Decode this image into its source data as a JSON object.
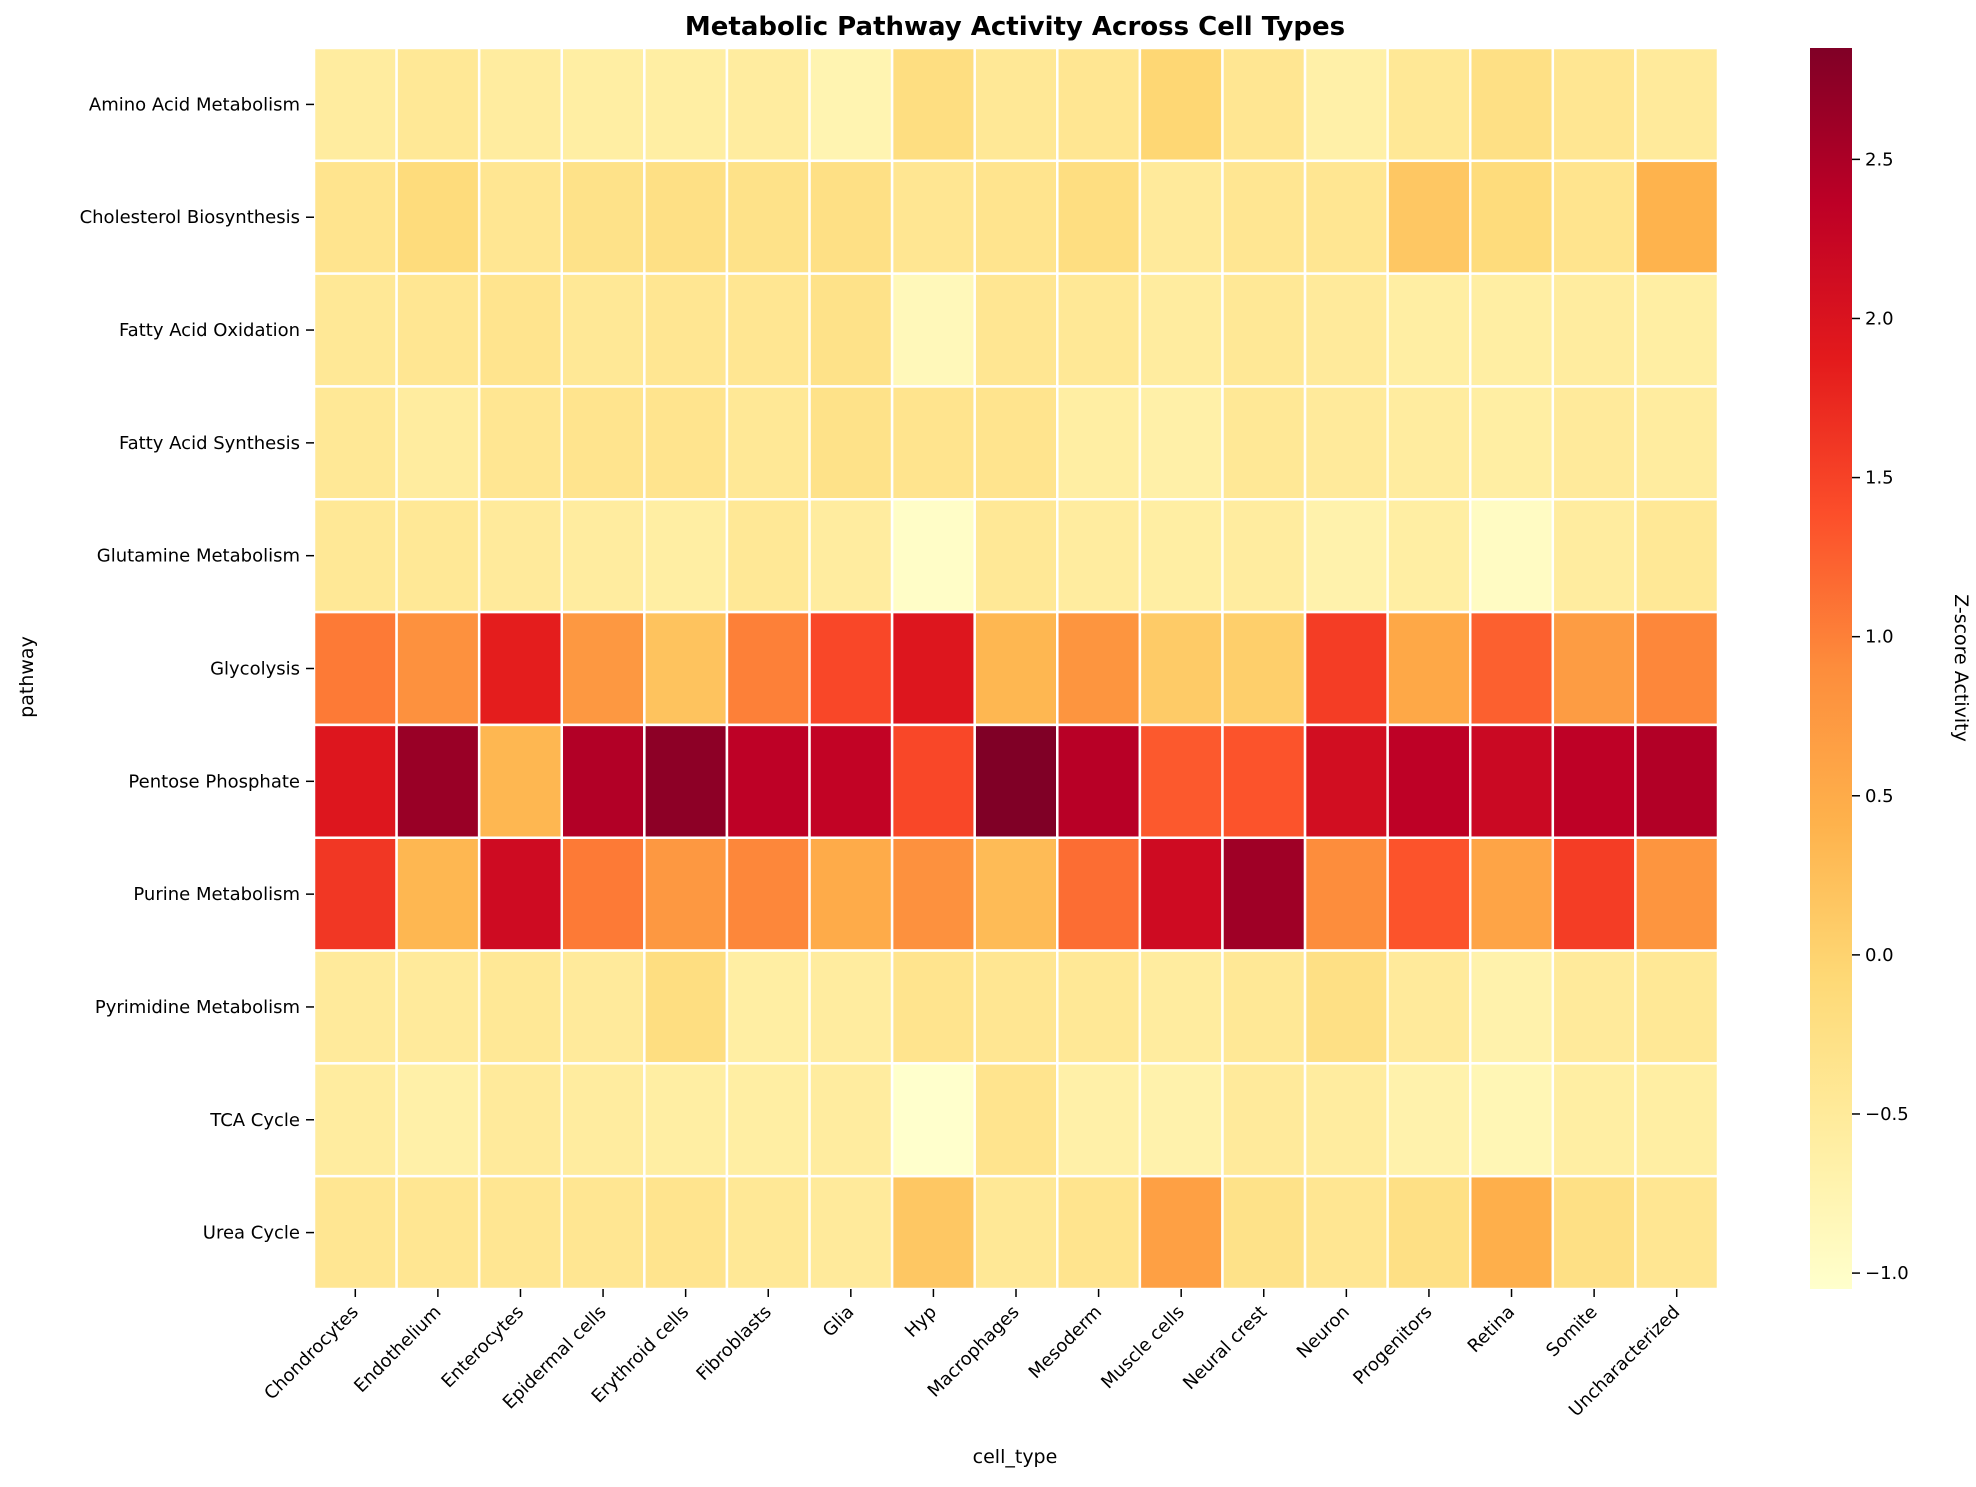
{
  "chart_data": {
    "type": "heatmap",
    "title": "Metabolic Pathway Activity Across Cell Types",
    "xlabel": "cell_type",
    "ylabel": "pathway",
    "colorbar_label": "Z-score Activity",
    "colormap": "YlOrRd",
    "color_range": [
      -1.05,
      2.85
    ],
    "colorbar_ticks": [
      {
        "value": 2.5,
        "label": "2.5"
      },
      {
        "value": 2.0,
        "label": "2.0"
      },
      {
        "value": 1.5,
        "label": "1.5"
      },
      {
        "value": 1.0,
        "label": "1.0"
      },
      {
        "value": 0.5,
        "label": "0.5"
      },
      {
        "value": 0.0,
        "label": "0.0"
      },
      {
        "value": -0.5,
        "label": "−0.5"
      },
      {
        "value": -1.0,
        "label": "−1.0"
      }
    ],
    "x_categories": [
      "Chondrocytes",
      "Endothelium",
      "Enterocytes",
      "Epidermal cells",
      "Erythroid cells",
      "Fibroblasts",
      "Glia",
      "Hyp",
      "Macrophages",
      "Mesoderm",
      "Muscle cells",
      "Neural crest",
      "Neuron",
      "Progenitors",
      "Retina",
      "Somite",
      "Uncharacterized"
    ],
    "y_categories": [
      "Amino Acid Metabolism",
      "Cholesterol Biosynthesis",
      "Fatty Acid Oxidation",
      "Fatty Acid Synthesis",
      "Glutamine Metabolism",
      "Glycolysis",
      "Pentose Phosphate",
      "Purine Metabolism",
      "Pyrimidine Metabolism",
      "TCA Cycle",
      "Urea Cycle"
    ],
    "values": [
      [
        -0.55,
        -0.45,
        -0.55,
        -0.6,
        -0.6,
        -0.55,
        -0.75,
        -0.2,
        -0.45,
        -0.4,
        -0.05,
        -0.4,
        -0.65,
        -0.45,
        -0.25,
        -0.4,
        -0.5
      ],
      [
        -0.35,
        -0.15,
        -0.4,
        -0.3,
        -0.25,
        -0.3,
        -0.25,
        -0.4,
        -0.35,
        -0.2,
        -0.5,
        -0.4,
        -0.4,
        0.15,
        -0.15,
        -0.35,
        0.4
      ],
      [
        -0.45,
        -0.4,
        -0.35,
        -0.45,
        -0.4,
        -0.4,
        -0.3,
        -0.85,
        -0.4,
        -0.45,
        -0.55,
        -0.45,
        -0.5,
        -0.6,
        -0.6,
        -0.55,
        -0.6
      ],
      [
        -0.45,
        -0.55,
        -0.4,
        -0.35,
        -0.35,
        -0.45,
        -0.3,
        -0.35,
        -0.35,
        -0.6,
        -0.65,
        -0.45,
        -0.5,
        -0.55,
        -0.6,
        -0.5,
        -0.55
      ],
      [
        -0.45,
        -0.45,
        -0.5,
        -0.55,
        -0.6,
        -0.45,
        -0.55,
        -1.0,
        -0.45,
        -0.55,
        -0.6,
        -0.55,
        -0.7,
        -0.6,
        -0.95,
        -0.55,
        -0.45
      ],
      [
        1.05,
        0.85,
        1.85,
        0.75,
        0.2,
        1.0,
        1.45,
        1.95,
        0.35,
        0.8,
        0.1,
        0.05,
        1.55,
        0.55,
        1.25,
        0.7,
        0.95
      ],
      [
        1.95,
        2.65,
        0.35,
        2.45,
        2.75,
        2.35,
        2.3,
        1.45,
        2.85,
        2.4,
        1.3,
        1.35,
        2.1,
        2.35,
        2.2,
        2.35,
        2.45
      ],
      [
        1.6,
        0.35,
        2.15,
        1.05,
        0.75,
        0.95,
        0.5,
        0.85,
        0.3,
        1.15,
        2.15,
        2.6,
        0.9,
        1.35,
        0.6,
        1.55,
        0.8
      ],
      [
        -0.5,
        -0.5,
        -0.45,
        -0.5,
        -0.2,
        -0.6,
        -0.55,
        -0.35,
        -0.4,
        -0.45,
        -0.55,
        -0.45,
        -0.25,
        -0.5,
        -0.7,
        -0.5,
        -0.45
      ],
      [
        -0.55,
        -0.65,
        -0.5,
        -0.55,
        -0.6,
        -0.6,
        -0.55,
        -1.05,
        -0.35,
        -0.65,
        -0.7,
        -0.5,
        -0.55,
        -0.7,
        -0.8,
        -0.6,
        -0.6
      ],
      [
        -0.4,
        -0.4,
        -0.4,
        -0.4,
        -0.35,
        -0.45,
        -0.5,
        0.15,
        -0.45,
        -0.35,
        0.65,
        -0.3,
        -0.4,
        -0.25,
        0.45,
        -0.25,
        -0.4
      ]
    ]
  }
}
